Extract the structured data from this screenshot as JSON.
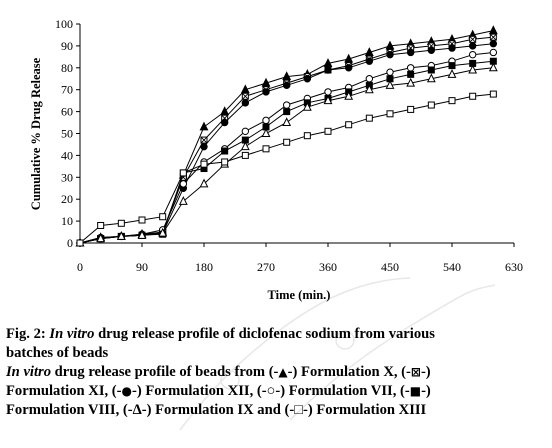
{
  "chart_data": {
    "type": "line",
    "title": "",
    "xlabel": "Time (min.)",
    "ylabel": "Cumulative % Drug Release",
    "xlim": [
      0,
      630
    ],
    "ylim": [
      0,
      100
    ],
    "xticks": [
      0,
      90,
      180,
      270,
      360,
      450,
      540,
      630
    ],
    "yticks": [
      0,
      10,
      20,
      30,
      40,
      50,
      60,
      70,
      80,
      90,
      100
    ],
    "grid": false,
    "x": [
      0,
      30,
      60,
      90,
      120,
      150,
      180,
      210,
      240,
      270,
      300,
      330,
      360,
      390,
      420,
      450,
      480,
      510,
      540,
      570,
      600
    ],
    "series": [
      {
        "name": "Formulation X",
        "marker": "filled-triangle",
        "values": [
          0,
          2.5,
          3,
          4,
          5,
          31,
          53,
          60,
          70,
          73,
          76,
          77,
          82,
          84,
          87,
          90,
          91,
          92,
          93,
          95,
          97
        ]
      },
      {
        "name": "Formulation XI",
        "marker": "x-box",
        "values": [
          0,
          2,
          3,
          3.5,
          5,
          30,
          47,
          57,
          67,
          70,
          73,
          76,
          79,
          81,
          84,
          87,
          89,
          90,
          91,
          93,
          94
        ]
      },
      {
        "name": "Formulation XII",
        "marker": "filled-circle",
        "values": [
          0,
          2,
          3,
          3.5,
          4.5,
          25,
          44,
          55,
          64,
          69,
          72,
          75,
          79,
          80,
          83,
          86,
          87,
          88,
          89,
          90,
          91
        ]
      },
      {
        "name": "Formulation VII",
        "marker": "open-circle",
        "values": [
          0,
          2.5,
          3,
          4,
          6,
          27,
          37,
          43,
          51,
          56,
          63,
          66,
          69,
          71,
          75,
          78,
          80,
          81,
          83,
          86,
          87
        ]
      },
      {
        "name": "Formulation VIII",
        "marker": "filled-square",
        "values": [
          0,
          2,
          3,
          3.5,
          4,
          32,
          34,
          42,
          47,
          53,
          60,
          64,
          66,
          69,
          72,
          75,
          77,
          79,
          81,
          82,
          83
        ]
      },
      {
        "name": "Formulation IX",
        "marker": "open-triangle",
        "values": [
          0,
          2,
          3,
          3.5,
          4.5,
          19,
          27,
          36,
          44,
          50,
          55,
          62,
          65,
          67,
          70,
          72,
          73,
          75,
          77,
          79,
          80
        ]
      },
      {
        "name": "Formulation XIII",
        "marker": "open-square",
        "values": [
          0,
          8,
          9,
          10.5,
          12,
          32,
          36,
          37,
          40,
          43,
          46,
          49,
          51,
          54,
          57,
          59,
          61,
          63,
          65,
          67,
          68
        ]
      }
    ]
  },
  "caption": {
    "fig_label": "Fig. 2:",
    "fig_italic": "In vitro",
    "fig_rest": "drug release profile of diclofenac sodium from various",
    "fig_line2": "batches of beads",
    "sub_italic": "In vitro",
    "sub_rest1": "drug release profile of beads from (-",
    "sym_x": "▲",
    "sub_rest2": "-) Formulation X, (-",
    "sym_xi": "⊠",
    "sub_rest3": "-)",
    "line4_a": "Formulation XI, (-",
    "sym_xii": "●",
    "line4_b": "-) Formulation XII, (-○-) Formulation VII, (-",
    "sym_viii": "■",
    "line4_c": "-)",
    "line5": "Formulation VIII, (-Δ-) Formulation IX and (-□-) Formulation XIII"
  }
}
